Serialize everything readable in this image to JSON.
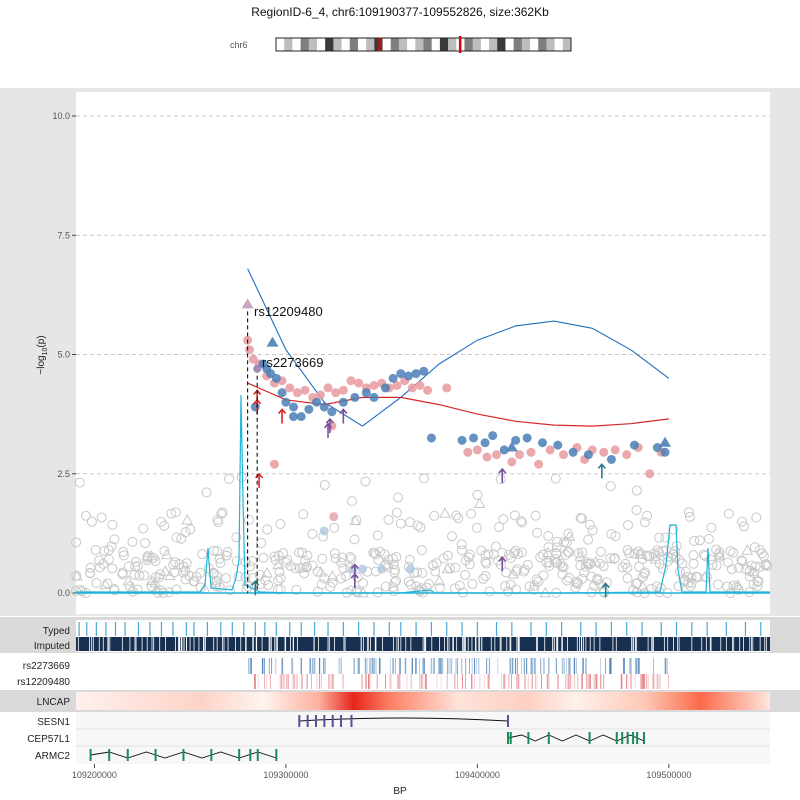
{
  "header": {
    "title": "RegionID-6_4, chr6:109190377-109552826, size:362Kb",
    "chrom_label": "chr6"
  },
  "axes": {
    "xlabel": "BP",
    "ylabel_main": "−log",
    "ylabel_sub": "10",
    "ylabel_tail": "(p)",
    "yticks": [
      {
        "v": 0.0,
        "label": "0.0"
      },
      {
        "v": 2.5,
        "label": "2.5"
      },
      {
        "v": 5.0,
        "label": "5.0"
      },
      {
        "v": 7.5,
        "label": "7.5"
      },
      {
        "v": 10.0,
        "label": "10.0"
      }
    ],
    "xticks": [
      {
        "v": 109200000,
        "label": "109200000"
      },
      {
        "v": 109300000,
        "label": "109300000"
      },
      {
        "v": 109400000,
        "label": "109400000"
      },
      {
        "v": 109500000,
        "label": "109500000"
      }
    ]
  },
  "tracks": {
    "typed": "Typed",
    "imputed": "Imputed",
    "snp1": "rs2273669",
    "snp2": "rs12209480",
    "cell": "LNCAP"
  },
  "genes": [
    {
      "name": "SESN1",
      "start": 109307000,
      "end": 109416000
    },
    {
      "name": "CEP57L1",
      "start": 109416000,
      "end": 109487000
    },
    {
      "name": "ARMC2",
      "start": 109198000,
      "end": 109295000
    }
  ],
  "colors": {
    "snp1": "#4a7fb5",
    "snp2": "#e07b80",
    "ld_lightblue": "#b3c9e0",
    "grey_points": "#c8c8c8",
    "red_line": "#d62728",
    "blue_line": "#1f6fbf",
    "cyan": "#1fb4d8",
    "purple": "#7a4f9a",
    "teal": "#2a7a8c",
    "navy": "#17304f",
    "gene_green": "#1a8a5a",
    "gene_purple": "#5b4c9c"
  },
  "chart_data": {
    "type": "scatter",
    "xlabel": "BP",
    "ylabel": "−log10(p)",
    "xlim": [
      109190377,
      109552826
    ],
    "ylim": [
      0,
      10
    ],
    "annotations": [
      {
        "text": "rs12209480",
        "x": 109280000,
        "y": 6.0
      },
      {
        "text": "rs2273669",
        "x": 109285000,
        "y": 4.7
      }
    ],
    "lead_snps": [
      {
        "name": "rs12209480",
        "x": 109280000,
        "y": 6.05
      },
      {
        "name": "rs2273669",
        "x": 109285000,
        "y": 4.7
      }
    ],
    "smooth_blue": {
      "x": [
        109280000,
        109300000,
        109320000,
        109340000,
        109360000,
        109380000,
        109400000,
        109420000,
        109440000,
        109460000,
        109480000,
        109500000
      ],
      "y": [
        6.8,
        5.1,
        4.0,
        3.5,
        4.1,
        4.8,
        5.3,
        5.6,
        5.7,
        5.55,
        5.1,
        4.5
      ]
    },
    "smooth_red": {
      "x": [
        109280000,
        109300000,
        109320000,
        109340000,
        109360000,
        109380000,
        109400000,
        109420000,
        109440000,
        109460000,
        109480000,
        109500000
      ],
      "y": [
        4.4,
        4.05,
        3.95,
        4.1,
        4.1,
        3.95,
        3.75,
        3.6,
        3.52,
        3.5,
        3.55,
        3.65
      ]
    },
    "series": [
      {
        "name": "rs12209480",
        "points": [
          [
            109280000,
            5.3
          ],
          [
            109281000,
            5.1
          ],
          [
            109283000,
            4.9
          ],
          [
            109286000,
            4.8
          ],
          [
            109290000,
            4.55
          ],
          [
            109294000,
            4.4
          ],
          [
            109298000,
            4.45
          ],
          [
            109302000,
            4.3
          ],
          [
            109306000,
            4.2
          ],
          [
            109310000,
            4.25
          ],
          [
            109314000,
            4.1
          ],
          [
            109318000,
            4.15
          ],
          [
            109322000,
            4.3
          ],
          [
            109326000,
            4.2
          ],
          [
            109330000,
            4.25
          ],
          [
            109334000,
            4.45
          ],
          [
            109338000,
            4.4
          ],
          [
            109342000,
            4.3
          ],
          [
            109346000,
            4.35
          ],
          [
            109350000,
            4.4
          ],
          [
            109354000,
            4.3
          ],
          [
            109358000,
            4.35
          ],
          [
            109362000,
            4.45
          ],
          [
            109366000,
            4.3
          ],
          [
            109370000,
            4.35
          ],
          [
            109374000,
            4.25
          ],
          [
            109384000,
            4.3
          ],
          [
            109324000,
            3.5
          ],
          [
            109325000,
            1.6
          ],
          [
            109395000,
            2.95
          ],
          [
            109400000,
            3.0
          ],
          [
            109405000,
            2.85
          ],
          [
            109410000,
            2.9
          ],
          [
            109418000,
            2.75
          ],
          [
            109422000,
            2.9
          ],
          [
            109428000,
            2.95
          ],
          [
            109432000,
            2.7
          ],
          [
            109438000,
            3.0
          ],
          [
            109445000,
            2.9
          ],
          [
            109452000,
            3.05
          ],
          [
            109456000,
            2.8
          ],
          [
            109460000,
            3.0
          ],
          [
            109466000,
            2.95
          ],
          [
            109472000,
            3.0
          ],
          [
            109478000,
            2.9
          ],
          [
            109484000,
            3.05
          ],
          [
            109490000,
            2.5
          ],
          [
            109496000,
            2.95
          ],
          [
            109294000,
            2.7
          ]
        ]
      },
      {
        "name": "rs2273669",
        "points": [
          [
            109288000,
            4.8
          ],
          [
            109290000,
            4.7
          ],
          [
            109292000,
            4.6
          ],
          [
            109295000,
            4.5
          ],
          [
            109298000,
            4.2
          ],
          [
            109300000,
            4.0
          ],
          [
            109304000,
            3.9
          ],
          [
            109308000,
            3.7
          ],
          [
            109312000,
            3.85
          ],
          [
            109316000,
            4.0
          ],
          [
            109320000,
            3.9
          ],
          [
            109324000,
            3.8
          ],
          [
            109330000,
            4.0
          ],
          [
            109336000,
            4.1
          ],
          [
            109342000,
            4.2
          ],
          [
            109346000,
            4.1
          ],
          [
            109352000,
            4.3
          ],
          [
            109356000,
            4.5
          ],
          [
            109360000,
            4.6
          ],
          [
            109364000,
            4.55
          ],
          [
            109368000,
            4.6
          ],
          [
            109372000,
            4.65
          ],
          [
            109376000,
            3.25
          ],
          [
            109392000,
            3.2
          ],
          [
            109398000,
            3.25
          ],
          [
            109404000,
            3.15
          ],
          [
            109408000,
            3.3
          ],
          [
            109414000,
            3.0
          ],
          [
            109420000,
            3.2
          ],
          [
            109426000,
            3.25
          ],
          [
            109434000,
            3.15
          ],
          [
            109442000,
            3.1
          ],
          [
            109450000,
            2.95
          ],
          [
            109458000,
            2.9
          ],
          [
            109470000,
            2.8
          ],
          [
            109482000,
            3.1
          ],
          [
            109494000,
            3.05
          ],
          [
            109498000,
            2.95
          ],
          [
            109284000,
            3.9
          ],
          [
            109304000,
            3.7
          ],
          [
            109320000,
            1.3
          ],
          [
            109335000,
            0.5
          ],
          [
            109340000,
            0.5
          ],
          [
            109350000,
            0.5
          ],
          [
            109365000,
            0.5
          ]
        ]
      }
    ],
    "typed_positions": [
      109192000,
      109196000,
      109201000,
      109206000,
      109211000,
      109216000,
      109223000,
      109229000,
      109235000,
      109241000,
      109248000,
      109252000,
      109259000,
      109266000,
      109272000,
      109278000,
      109284000,
      109289000,
      109295000,
      109302000,
      109308000,
      109315000,
      109322000,
      109330000,
      109338000,
      109346000,
      109354000,
      109360000,
      109368000,
      109376000,
      109384000,
      109392000,
      109400000,
      109410000,
      109418000,
      109428000,
      109436000,
      109444000,
      109454000,
      109462000,
      109470000,
      109478000,
      109486000,
      109496000,
      109504000,
      109512000,
      109520000,
      109530000,
      109540000,
      109548000
    ],
    "ideogram_highlight": 0.62
  }
}
